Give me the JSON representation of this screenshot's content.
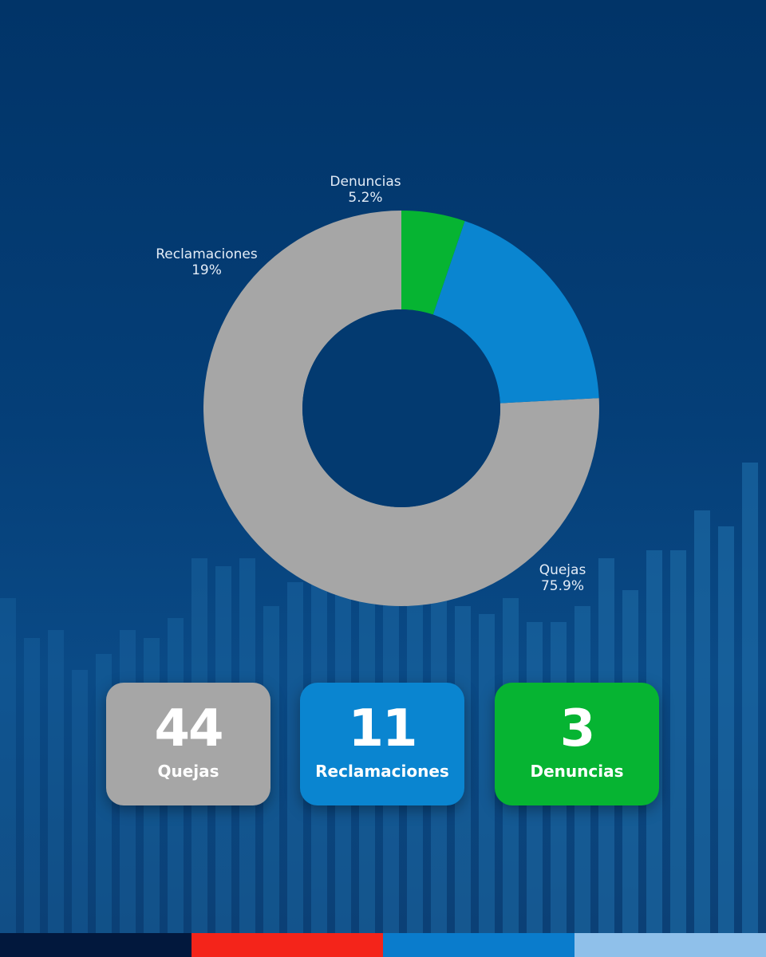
{
  "chart_data": {
    "type": "pie",
    "subtype": "donut",
    "slices": [
      {
        "label": "Quejas",
        "value_label": "75.9%",
        "value": 75.9,
        "color": "#a6a6a6"
      },
      {
        "label": "Reclamaciones",
        "value_label": "19%",
        "value": 19.0,
        "color": "#0a85d0"
      },
      {
        "label": "Denuncias",
        "value_label": "5.2%",
        "value": 5.2,
        "color": "#06b432"
      }
    ],
    "start": "top",
    "direction": "counterclockwise"
  },
  "cards": [
    {
      "value": "44",
      "label": "Quejas",
      "color": "#a6a6a6"
    },
    {
      "value": "11",
      "label": "Reclamaciones",
      "color": "#0a85d0"
    },
    {
      "value": "3",
      "label": "Denuncias",
      "color": "#06b432"
    }
  ],
  "footer_colors": [
    "#02183d",
    "#f4241a",
    "#0a7ccc",
    "#8fc0ea"
  ]
}
